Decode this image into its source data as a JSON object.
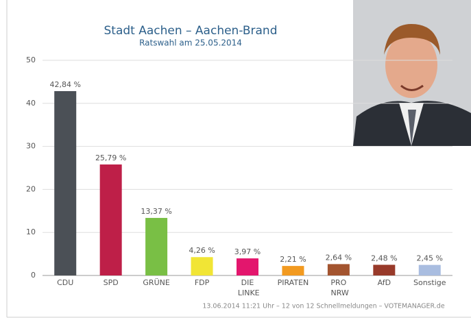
{
  "chart_data": {
    "type": "bar",
    "title": "Stadt Aachen – Aachen-Brand",
    "subtitle": "Ratswahl am 25.05.2014",
    "categories": [
      "CDU",
      "SPD",
      "GRÜNE",
      "FDP",
      "DIE LINKE",
      "PIRATEN",
      "PRO NRW",
      "AfD",
      "Sonstige"
    ],
    "values": [
      42.84,
      25.79,
      13.37,
      4.26,
      3.97,
      2.21,
      2.64,
      2.48,
      2.45
    ],
    "value_labels": [
      "42,84 %",
      "25,79 %",
      "13,37 %",
      "4,26 %",
      "3,97 %",
      "2,21 %",
      "2,64 %",
      "2,48 %",
      "2,45 %"
    ],
    "colors": [
      "#4b5056",
      "#be1f48",
      "#79bf45",
      "#f1e535",
      "#e3166d",
      "#f29a20",
      "#a3542f",
      "#983a2a",
      "#a9bde0"
    ],
    "ylim": [
      0,
      50
    ],
    "yticks": [
      0,
      10,
      20,
      30,
      40,
      50
    ],
    "grid": true,
    "footer": "13.06.2014 11:21 Uhr – 12 von 12 Schnellmeldungen – VOTEMANAGER.de"
  }
}
